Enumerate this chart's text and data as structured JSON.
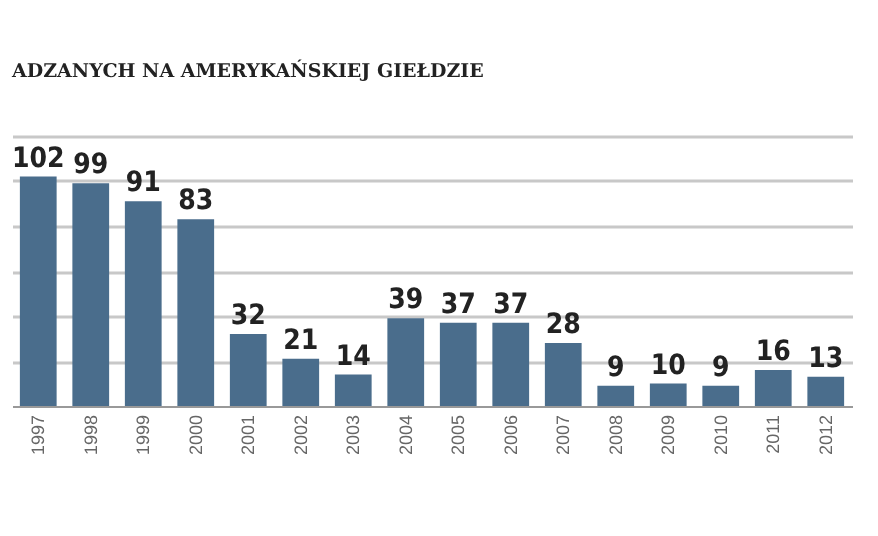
{
  "chart_data": {
    "type": "bar",
    "title": "ADZANYCH NA AMERYKAŃSKIEJ GIEŁDZIE",
    "categories": [
      "1997",
      "1998",
      "1999",
      "2000",
      "2001",
      "2002",
      "2003",
      "2004",
      "2005",
      "2006",
      "2007",
      "2008",
      "2009",
      "2010",
      "2011",
      "2012"
    ],
    "values": [
      102,
      99,
      91,
      83,
      32,
      21,
      14,
      39,
      37,
      37,
      28,
      9,
      10,
      9,
      16,
      13
    ],
    "color": "#4a6d8c",
    "data_labels": true,
    "ylim": [
      0,
      120
    ],
    "yticks": [
      {
        "value": 20,
        "label": null
      },
      {
        "value": 40,
        "label": null
      },
      {
        "value": 60,
        "label": null
      },
      {
        "value": 80,
        "label": null
      },
      {
        "value": 100,
        "label": null
      },
      {
        "value": 120,
        "label": null
      }
    ],
    "grid": "y",
    "tick_labels": "x"
  }
}
